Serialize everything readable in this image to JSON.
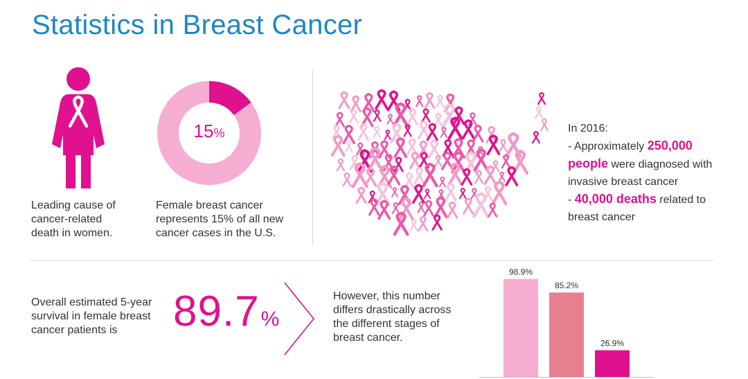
{
  "title": "Statistics in Breast Cancer",
  "colors": {
    "title": "#1e86c4",
    "accent": "#e0118e",
    "pink_light": "#f5aed1",
    "pink_mid": "#e8808f",
    "text": "#333333"
  },
  "icons": {
    "woman": "woman-ribbon-icon",
    "map": "us-ribbon-map",
    "chevron": "chevron-right-icon"
  },
  "leading_cause": {
    "caption": [
      "Leading cause of",
      "cancer-related",
      "death in women."
    ]
  },
  "donut": {
    "value": "15",
    "unit": "%",
    "caption": [
      "Female breast cancer",
      "represents 15% of all new",
      "cancer cases in the U.S."
    ]
  },
  "stats_2016": {
    "year_line": "In 2016:",
    "line1_pre": "- Approximately ",
    "line1_hl": "250,000",
    "line2_hl": "people",
    "line2_post": " were diagnosed with",
    "line3": "invasive breast cancer",
    "line4_pre": "- ",
    "line4_hl": "40,000 deaths",
    "line4_post": " related to",
    "line5": "breast cancer"
  },
  "survival": {
    "caption": [
      "Overall estimated 5-year",
      "survival in female breast",
      "cancer patients is"
    ],
    "value": "89.7",
    "unit": "%"
  },
  "stages": {
    "caption": [
      "However, this number",
      "differs drastically across",
      "the different stages of",
      "breast cancer."
    ]
  },
  "chart_data": [
    {
      "type": "pie",
      "values": [
        15,
        85
      ],
      "colors": [
        "#e0118e",
        "#f5aed1"
      ]
    },
    {
      "type": "bar",
      "values": [
        98.9,
        85.2,
        26.9
      ],
      "labels": [
        "98.9%",
        "85.2%",
        "26.9%"
      ],
      "colors": [
        "#f5aed1",
        "#e8808f",
        "#e0118e"
      ],
      "ylim": [
        0,
        100
      ],
      "grid": false
    }
  ]
}
